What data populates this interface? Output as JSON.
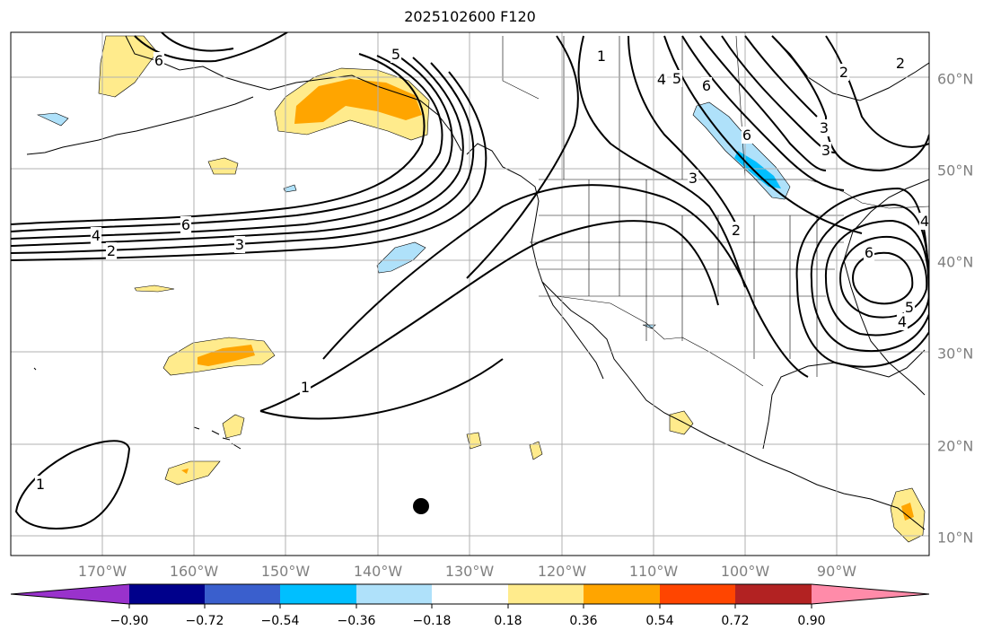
{
  "title": "2025102600 F120",
  "lon_labels": [
    "170°W",
    "160°W",
    "150°W",
    "140°W",
    "130°W",
    "120°W",
    "110°W",
    "100°W",
    "90°W"
  ],
  "lat_labels": [
    "60°N",
    "50°N",
    "40°N",
    "30°N",
    "20°N",
    "10°N"
  ],
  "contour_labels": [
    "6",
    "5",
    "4",
    "6",
    "3",
    "5",
    "4",
    "6",
    "2",
    "3",
    "2",
    "6",
    "4",
    "3",
    "2",
    "1",
    "3",
    "6",
    "5",
    "4",
    "2",
    "1",
    "1"
  ],
  "colorbar": {
    "colors": [
      "#9932cc",
      "#00008b",
      "#3a5fcd",
      "#00bfff",
      "#afe1fa",
      "#ffffff",
      "#ffeb8c",
      "#ffa500",
      "#ff4500",
      "#b22222",
      "#ff8ba9"
    ],
    "tick_labels": [
      "−0.90",
      "−0.72",
      "−0.54",
      "−0.36",
      "−0.18",
      "0.18",
      "0.36",
      "0.54",
      "0.72",
      "0.90"
    ]
  },
  "marker": "black-dot"
}
